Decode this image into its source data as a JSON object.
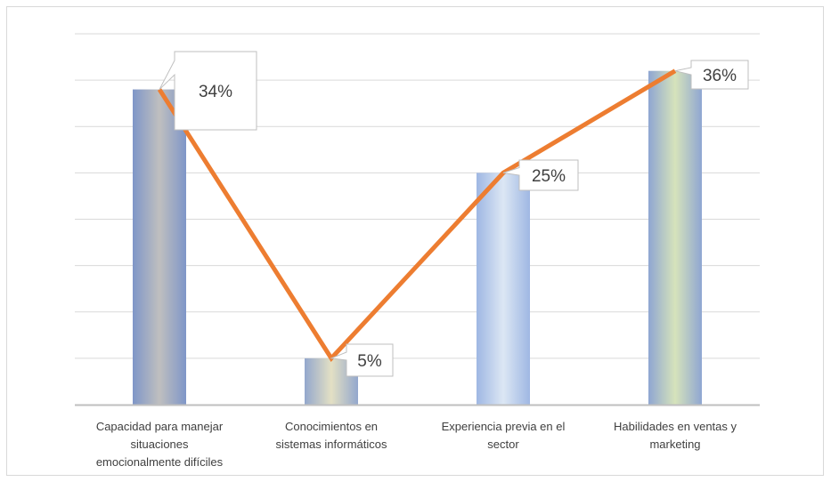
{
  "chart_data": {
    "type": "bar",
    "categories": [
      [
        "Capacidad para manejar",
        "situaciones",
        "emocionalmente difíciles"
      ],
      [
        "Conocimientos en",
        "sistemas informáticos"
      ],
      [
        "Experiencia previa en el",
        "sector"
      ],
      [
        "Habilidades en ventas y",
        "marketing"
      ]
    ],
    "values": [
      34,
      5,
      25,
      36
    ],
    "data_labels": [
      "34%",
      "5%",
      "25%",
      "36%"
    ],
    "ylim": [
      0,
      40
    ],
    "grid": true,
    "legend": "none",
    "overlay_line": {
      "type": "line",
      "values": [
        34,
        5,
        25,
        36
      ]
    },
    "colors": {
      "line": "#ED7D31",
      "gridline": "#d9d9d9",
      "axis": "#bfbfbf",
      "bar_edges": [
        "#7f96c8",
        "#93a7cd",
        "#9fb7e3",
        "#8fa6d2"
      ],
      "bar_centers": [
        "#bfbfbf",
        "#e3e0c4",
        "#dce7f4",
        "#d6e3bb"
      ]
    }
  }
}
